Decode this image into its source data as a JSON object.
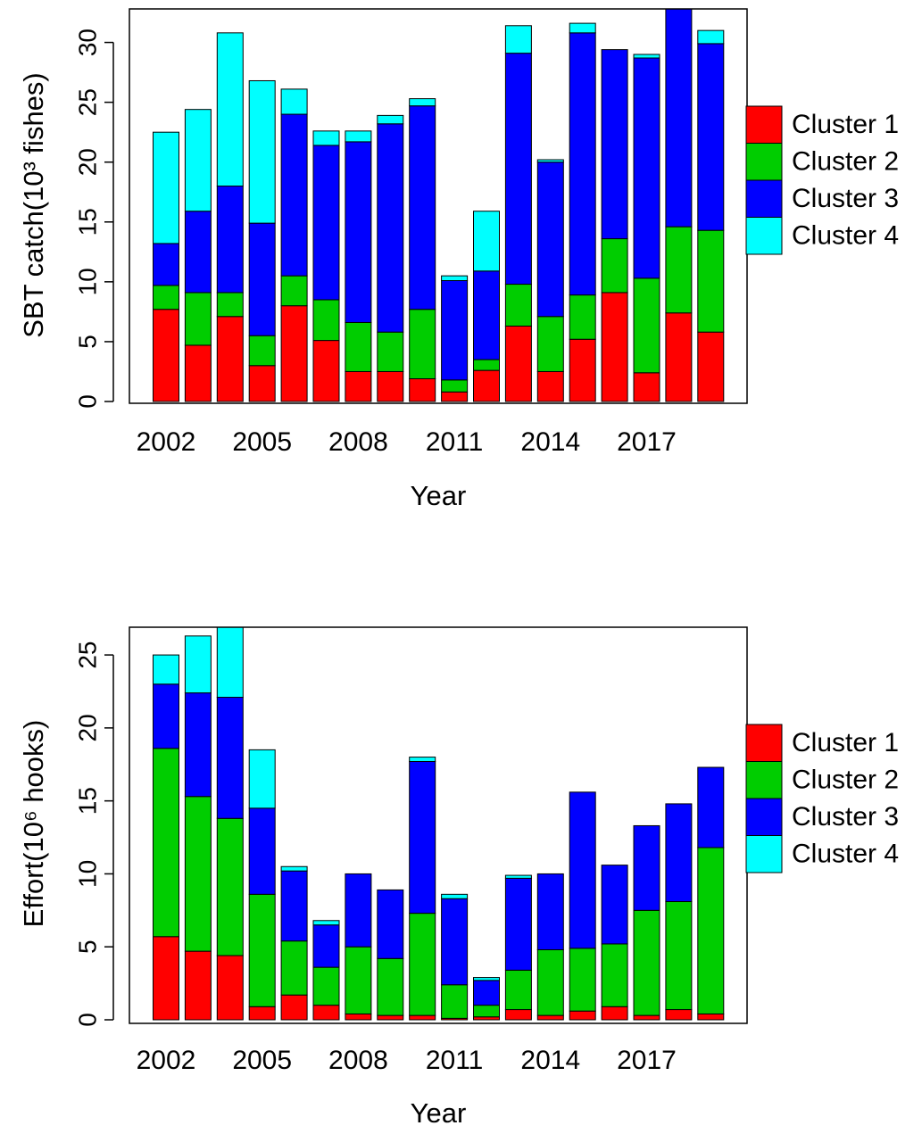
{
  "chart_data": [
    {
      "type": "bar",
      "stacked": true,
      "x_label": "Year",
      "y_label": "SBT catch(10³ fishes)",
      "categories": [
        "2002",
        null,
        null,
        "2005",
        null,
        null,
        "2008",
        null,
        null,
        "2011",
        null,
        null,
        "2014",
        null,
        null,
        "2017",
        null,
        null
      ],
      "series": [
        {
          "name": "Cluster 1",
          "color": "#ff0000",
          "values": [
            7.7,
            4.7,
            7.1,
            3.0,
            8.0,
            5.1,
            2.5,
            2.5,
            1.9,
            0.8,
            2.6,
            6.3,
            2.5,
            5.2,
            9.1,
            2.4,
            7.4,
            5.8
          ]
        },
        {
          "name": "Cluster 2",
          "color": "#00cd00",
          "values": [
            2.0,
            4.4,
            2.0,
            2.5,
            2.5,
            3.4,
            4.1,
            3.3,
            5.8,
            1.0,
            0.9,
            3.5,
            4.6,
            3.7,
            4.5,
            7.9,
            7.2,
            8.5
          ]
        },
        {
          "name": "Cluster 3",
          "color": "#0000ff",
          "values": [
            3.5,
            6.8,
            8.9,
            9.4,
            13.5,
            12.9,
            15.1,
            17.4,
            17.0,
            8.3,
            7.4,
            19.3,
            12.9,
            21.9,
            15.8,
            18.4,
            18.4,
            15.6
          ]
        },
        {
          "name": "Cluster 4",
          "color": "#00ffff",
          "values": [
            9.3,
            8.5,
            12.8,
            11.9,
            2.1,
            1.2,
            0.9,
            0.7,
            0.6,
            0.4,
            5.0,
            2.3,
            0.2,
            0.8,
            0,
            0.3,
            0,
            1.1
          ]
        }
      ],
      "ylim": [
        0,
        32.8
      ],
      "yticks": [
        0,
        5,
        10,
        15,
        20,
        25,
        30
      ],
      "legend": "right"
    },
    {
      "type": "bar",
      "stacked": true,
      "x_label": "Year",
      "y_label": "Effort(10⁶ hooks)",
      "categories": [
        "2002",
        null,
        null,
        "2005",
        null,
        null,
        "2008",
        null,
        null,
        "2011",
        null,
        null,
        "2014",
        null,
        null,
        "2017",
        null,
        null
      ],
      "series": [
        {
          "name": "Cluster 1",
          "color": "#ff0000",
          "values": [
            5.7,
            4.7,
            4.4,
            0.9,
            1.7,
            1.0,
            0.4,
            0.3,
            0.3,
            0.1,
            0.2,
            0.7,
            0.3,
            0.6,
            0.9,
            0.3,
            0.7,
            0.4
          ]
        },
        {
          "name": "Cluster 2",
          "color": "#00cd00",
          "values": [
            12.9,
            10.6,
            9.4,
            7.7,
            3.7,
            2.6,
            4.6,
            3.9,
            7.0,
            2.3,
            0.8,
            2.7,
            4.5,
            4.3,
            4.3,
            7.2,
            7.4,
            11.4
          ]
        },
        {
          "name": "Cluster 3",
          "color": "#0000ff",
          "values": [
            4.4,
            7.1,
            8.3,
            5.9,
            4.8,
            2.9,
            5.0,
            4.7,
            10.4,
            5.9,
            1.7,
            6.3,
            5.2,
            10.7,
            5.4,
            5.8,
            6.7,
            5.5
          ]
        },
        {
          "name": "Cluster 4",
          "color": "#00ffff",
          "values": [
            2.0,
            3.9,
            4.8,
            4.0,
            0.3,
            0.3,
            0,
            0,
            0.3,
            0.3,
            0.2,
            0.2,
            0,
            0,
            0,
            0,
            0,
            0
          ]
        }
      ],
      "ylim": [
        0,
        26.9
      ],
      "yticks": [
        0,
        5,
        10,
        15,
        20,
        25
      ],
      "legend": "right"
    }
  ]
}
